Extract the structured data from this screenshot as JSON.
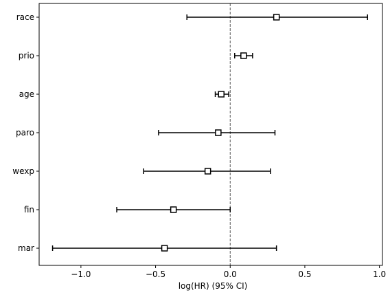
{
  "chart_data": {
    "type": "forest",
    "xlabel": "log(HR) (95% CI)",
    "ylabel": "",
    "title": "",
    "xlim": [
      -1.28,
      1.02
    ],
    "xticks": [
      -1.0,
      -0.5,
      0.0,
      0.5,
      1.0
    ],
    "xtick_labels": [
      "−1.0",
      "−0.5",
      "0.0",
      "0.5",
      "1.0"
    ],
    "reference_line": 0,
    "grid": false,
    "rows": [
      {
        "label": "race",
        "coef": 0.31,
        "lower": -0.29,
        "upper": 0.92
      },
      {
        "label": "prio",
        "coef": 0.09,
        "lower": 0.03,
        "upper": 0.15
      },
      {
        "label": "age",
        "coef": -0.06,
        "lower": -0.1,
        "upper": -0.01
      },
      {
        "label": "paro",
        "coef": -0.08,
        "lower": -0.48,
        "upper": 0.3
      },
      {
        "label": "wexp",
        "coef": -0.15,
        "lower": -0.58,
        "upper": 0.27
      },
      {
        "label": "fin",
        "coef": -0.38,
        "lower": -0.76,
        "upper": 0.0
      },
      {
        "label": "mar",
        "coef": -0.44,
        "lower": -1.19,
        "upper": 0.31
      }
    ],
    "colors": {
      "marker_edge": "#000000",
      "marker_fill": "#ffffff",
      "line": "#000000",
      "reference": "#555555"
    }
  }
}
